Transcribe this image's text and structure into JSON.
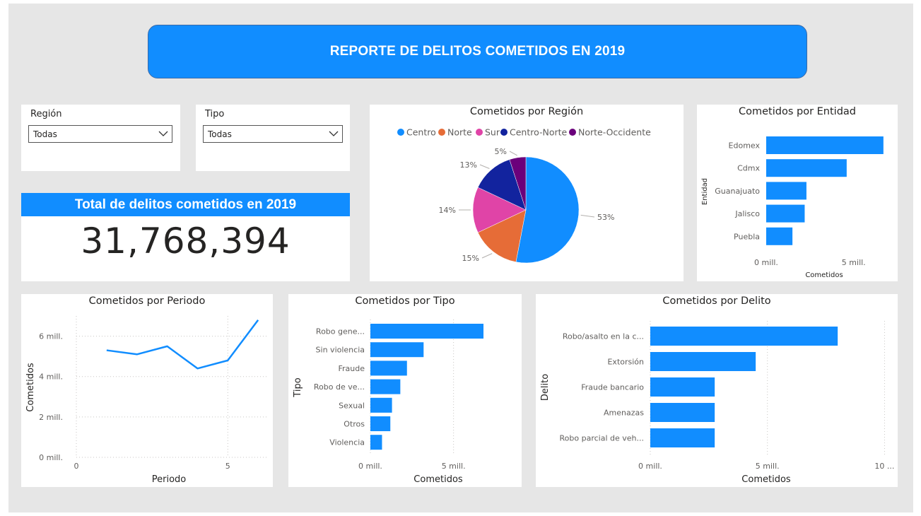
{
  "header": {
    "title": "REPORTE DE DELITOS COMETIDOS EN 2019"
  },
  "slicers": {
    "region": {
      "label": "Región",
      "value": "Todas"
    },
    "tipo": {
      "label": "Tipo",
      "value": "Todas"
    }
  },
  "kpi": {
    "label": "Total de delitos cometidos en 2019",
    "value": "31,768,394"
  },
  "colors": {
    "accent": "#118dff",
    "orange": "#e66c37",
    "pink": "#e044a7",
    "navy": "#12239e",
    "purple": "#6b007b"
  },
  "charts": {
    "region": {
      "title": "Cometidos por Región"
    },
    "entidad": {
      "title": "Cometidos por Entidad"
    },
    "periodo": {
      "title": "Cometidos por Periodo"
    },
    "tipo": {
      "title": "Cometidos por Tipo"
    },
    "delito": {
      "title": "Cometidos por Delito"
    }
  },
  "chart_data": [
    {
      "id": "region",
      "type": "pie",
      "title": "Cometidos por Región",
      "legend_position": "top",
      "labels": [
        "Centro",
        "Norte",
        "Sur",
        "Centro-Norte",
        "Norte-Occidente"
      ],
      "values": [
        53,
        15,
        14,
        13,
        5
      ],
      "data_labels": [
        "53%",
        "15%",
        "14%",
        "13%",
        "5%"
      ],
      "colors": [
        "#118dff",
        "#e66c37",
        "#e044a7",
        "#12239e",
        "#6b007b"
      ]
    },
    {
      "id": "entidad",
      "type": "bar",
      "orientation": "horizontal",
      "title": "Cometidos por Entidad",
      "categories": [
        "Edomex",
        "Cdmx",
        "Guanajuato",
        "Jalisco",
        "Puebla"
      ],
      "values": [
        6.7,
        4.6,
        2.3,
        2.2,
        1.5
      ],
      "xlabel": "Cometidos",
      "ylabel": "Entidad",
      "xlim": [
        0,
        8
      ],
      "ticks": [
        0,
        5
      ],
      "tick_labels": [
        "0 mill.",
        "5 mill."
      ]
    },
    {
      "id": "periodo",
      "type": "line",
      "title": "Cometidos por Periodo",
      "x": [
        1,
        2,
        3,
        4,
        5,
        6
      ],
      "values": [
        5.3,
        5.1,
        5.5,
        4.4,
        4.8,
        6.8
      ],
      "xlabel": "Periodo",
      "ylabel": "Cometidos",
      "xlim": [
        0,
        6.3
      ],
      "ylim": [
        0,
        7
      ],
      "x_ticks": [
        0,
        5
      ],
      "x_tick_labels": [
        "0",
        "5"
      ],
      "y_ticks": [
        0,
        2,
        4,
        6
      ],
      "y_tick_labels": [
        "0 mill.",
        "2 mill.",
        "4 mill.",
        "6 mill."
      ],
      "grid": true
    },
    {
      "id": "tipo",
      "type": "bar",
      "orientation": "horizontal",
      "title": "Cometidos por Tipo",
      "categories": [
        "Robo gene...",
        "Sin violencia",
        "Fraude",
        "Robo de ve...",
        "Sexual",
        "Otros",
        "Violencia"
      ],
      "values": [
        6.8,
        3.2,
        2.2,
        1.8,
        1.3,
        1.2,
        0.7
      ],
      "xlabel": "Cometidos",
      "ylabel": "Tipo",
      "xlim": [
        0,
        8.5
      ],
      "ticks": [
        0,
        5
      ],
      "tick_labels": [
        "0 mill.",
        "5 mill."
      ],
      "grid": true
    },
    {
      "id": "delito",
      "type": "bar",
      "orientation": "horizontal",
      "title": "Cometidos por Delito",
      "categories": [
        "Robo/asalto en la c...",
        "Extorsión",
        "Fraude bancario",
        "Amenazas",
        "Robo parcial de veh..."
      ],
      "values": [
        8.0,
        4.5,
        2.75,
        2.75,
        2.75
      ],
      "xlabel": "Cometidos",
      "ylabel": "Delito",
      "xlim": [
        0,
        10.5
      ],
      "ticks": [
        0,
        5,
        10
      ],
      "tick_labels": [
        "0 mill.",
        "5 mill.",
        "10 ..."
      ],
      "grid": true
    }
  ]
}
